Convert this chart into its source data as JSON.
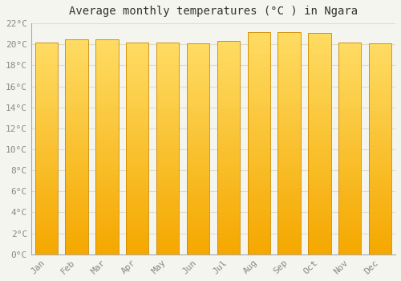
{
  "title": "Average monthly temperatures (°C ) in Ngara",
  "months": [
    "Jan",
    "Feb",
    "Mar",
    "Apr",
    "May",
    "Jun",
    "Jul",
    "Aug",
    "Sep",
    "Oct",
    "Nov",
    "Dec"
  ],
  "values": [
    20.2,
    20.5,
    20.5,
    20.2,
    20.2,
    20.1,
    20.3,
    21.2,
    21.2,
    21.1,
    20.2,
    20.1
  ],
  "bar_color_top": "#FFD966",
  "bar_color_bottom": "#F5A800",
  "bar_edge_color": "#CC8800",
  "ylim": [
    0,
    22
  ],
  "ytick_step": 2,
  "background_color": "#F5F5F0",
  "plot_bg_color": "#F5F5F0",
  "grid_color": "#DDDDCC",
  "title_fontsize": 10,
  "tick_fontsize": 8,
  "bar_width": 0.75
}
